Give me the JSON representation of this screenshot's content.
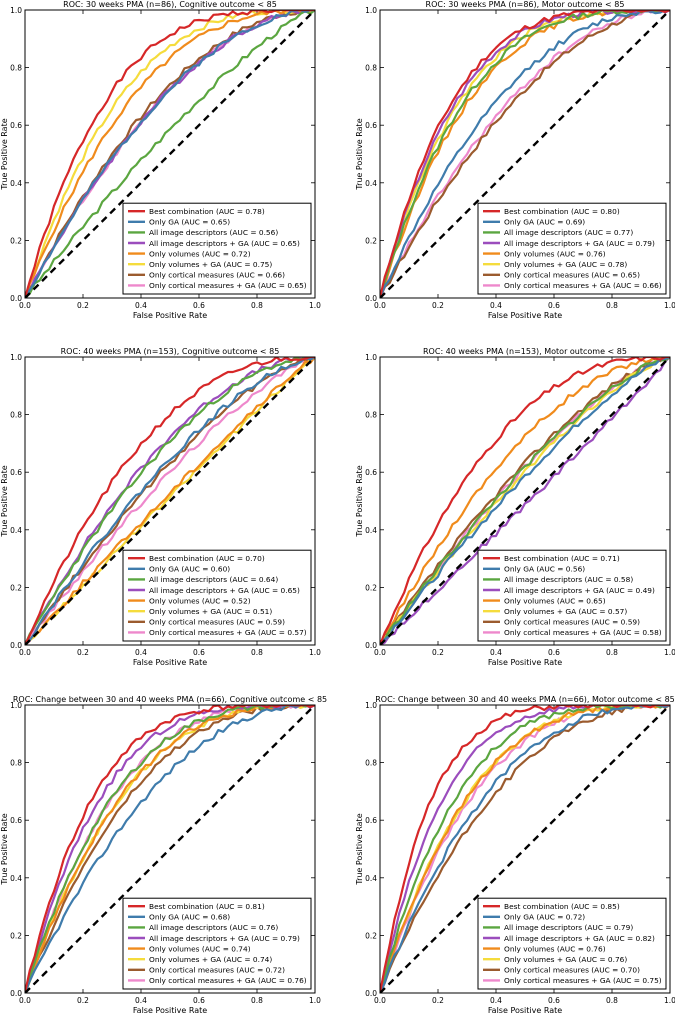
{
  "chart_data": [
    {
      "type": "line",
      "title": "ROC: 30 weeks PMA (n=86), Cognitive outcome < 85",
      "xlabel": "False Positive Rate",
      "ylabel": "True Positive Rate",
      "xlim": [
        0,
        1
      ],
      "ylim": [
        0,
        1
      ],
      "xticks": [
        "0.0",
        "0.2",
        "0.4",
        "0.6",
        "0.8",
        "1.0"
      ],
      "yticks": [
        "0.0",
        "0.2",
        "0.4",
        "0.6",
        "0.8",
        "1.0"
      ],
      "legend": "lower-right",
      "series": [
        {
          "name": "Best combination (AUC = 0.78)",
          "auc": 0.78,
          "color": "#d62728"
        },
        {
          "name": "Only GA (AUC = 0.65)",
          "auc": 0.65,
          "color": "#3f7cac"
        },
        {
          "name": "All image descriptors (AUC = 0.56)",
          "auc": 0.56,
          "color": "#5ba640"
        },
        {
          "name": "All image descriptors + GA (AUC = 0.65)",
          "auc": 0.65,
          "color": "#9b4dbd"
        },
        {
          "name": "Only volumes (AUC = 0.72)",
          "auc": 0.72,
          "color": "#f08b1c"
        },
        {
          "name": "Only volumes + GA (AUC = 0.75)",
          "auc": 0.75,
          "color": "#f5dc3c"
        },
        {
          "name": "Only cortical measures (AUC = 0.66)",
          "auc": 0.66,
          "color": "#9b5b2e"
        },
        {
          "name": "Only cortical measures + GA (AUC = 0.65)",
          "auc": 0.65,
          "color": "#ee88cc"
        }
      ]
    },
    {
      "type": "line",
      "title": "ROC: 30 weeks PMA (n=86), Motor outcome < 85",
      "xlabel": "False Positive Rate",
      "ylabel": "True Positive Rate",
      "xlim": [
        0,
        1
      ],
      "ylim": [
        0,
        1
      ],
      "xticks": [
        "0.0",
        "0.2",
        "0.4",
        "0.6",
        "0.8",
        "1.0"
      ],
      "yticks": [
        "0.0",
        "0.2",
        "0.4",
        "0.6",
        "0.8",
        "1.0"
      ],
      "legend": "lower-right",
      "series": [
        {
          "name": "Best combination (AUC = 0.80)",
          "auc": 0.8,
          "color": "#d62728"
        },
        {
          "name": "Only GA (AUC = 0.69)",
          "auc": 0.69,
          "color": "#3f7cac"
        },
        {
          "name": "All image descriptors (AUC = 0.77)",
          "auc": 0.77,
          "color": "#5ba640"
        },
        {
          "name": "All image descriptors + GA (AUC = 0.79)",
          "auc": 0.79,
          "color": "#9b4dbd"
        },
        {
          "name": "Only volumes (AUC = 0.76)",
          "auc": 0.76,
          "color": "#f08b1c"
        },
        {
          "name": "Only volumes + GA (AUC = 0.78)",
          "auc": 0.78,
          "color": "#f5dc3c"
        },
        {
          "name": "Only cortical measures (AUC = 0.65)",
          "auc": 0.65,
          "color": "#9b5b2e"
        },
        {
          "name": "Only cortical measures + GA (AUC = 0.66)",
          "auc": 0.66,
          "color": "#ee88cc"
        }
      ]
    },
    {
      "type": "line",
      "title": "ROC: 40 weeks PMA (n=153), Cognitive outcome < 85",
      "xlabel": "False Positive Rate",
      "ylabel": "True Positive Rate",
      "xlim": [
        0,
        1
      ],
      "ylim": [
        0,
        1
      ],
      "xticks": [
        "0.0",
        "0.2",
        "0.4",
        "0.6",
        "0.8",
        "1.0"
      ],
      "yticks": [
        "0.0",
        "0.2",
        "0.4",
        "0.6",
        "0.8",
        "1.0"
      ],
      "legend": "lower-right",
      "series": [
        {
          "name": "Best combination (AUC = 0.70)",
          "auc": 0.7,
          "color": "#d62728"
        },
        {
          "name": "Only GA (AUC = 0.60)",
          "auc": 0.6,
          "color": "#3f7cac"
        },
        {
          "name": "All image descriptors (AUC = 0.64)",
          "auc": 0.64,
          "color": "#5ba640"
        },
        {
          "name": "All image descriptors + GA (AUC = 0.65)",
          "auc": 0.65,
          "color": "#9b4dbd"
        },
        {
          "name": "Only volumes (AUC = 0.52)",
          "auc": 0.52,
          "color": "#f08b1c"
        },
        {
          "name": "Only volumes + GA (AUC = 0.51)",
          "auc": 0.51,
          "color": "#f5dc3c"
        },
        {
          "name": "Only cortical measures (AUC = 0.59)",
          "auc": 0.59,
          "color": "#9b5b2e"
        },
        {
          "name": "Only cortical measures + GA (AUC = 0.57)",
          "auc": 0.57,
          "color": "#ee88cc"
        }
      ]
    },
    {
      "type": "line",
      "title": "ROC: 40 weeks PMA (n=153), Motor outcome < 85",
      "xlabel": "False Positive Rate",
      "ylabel": "True Positive Rate",
      "xlim": [
        0,
        1
      ],
      "ylim": [
        0,
        1
      ],
      "xticks": [
        "0.0",
        "0.2",
        "0.4",
        "0.6",
        "0.8",
        "1.0"
      ],
      "yticks": [
        "0.0",
        "0.2",
        "0.4",
        "0.6",
        "0.8",
        "1.0"
      ],
      "legend": "lower-right",
      "series": [
        {
          "name": "Best combination (AUC = 0.71)",
          "auc": 0.71,
          "color": "#d62728"
        },
        {
          "name": "Only GA (AUC = 0.56)",
          "auc": 0.56,
          "color": "#3f7cac"
        },
        {
          "name": "All image descriptors (AUC = 0.58)",
          "auc": 0.58,
          "color": "#5ba640"
        },
        {
          "name": "All image descriptors + GA (AUC = 0.49)",
          "auc": 0.49,
          "color": "#9b4dbd"
        },
        {
          "name": "Only volumes (AUC = 0.65)",
          "auc": 0.65,
          "color": "#f08b1c"
        },
        {
          "name": "Only volumes + GA (AUC = 0.57)",
          "auc": 0.57,
          "color": "#f5dc3c"
        },
        {
          "name": "Only cortical measures (AUC = 0.59)",
          "auc": 0.59,
          "color": "#9b5b2e"
        },
        {
          "name": "Only cortical measures + GA (AUC = 0.58)",
          "auc": 0.58,
          "color": "#ee88cc"
        }
      ]
    },
    {
      "type": "line",
      "title": "ROC: Change between 30 and 40 weeks PMA (n=66), Cognitive outcome < 85",
      "xlabel": "False Positive Rate",
      "ylabel": "True Positive Rate",
      "xlim": [
        0,
        1
      ],
      "ylim": [
        0,
        1
      ],
      "xticks": [
        "0.0",
        "0.2",
        "0.4",
        "0.6",
        "0.8",
        "1.0"
      ],
      "yticks": [
        "0.0",
        "0.2",
        "0.4",
        "0.6",
        "0.8",
        "1.0"
      ],
      "legend": "lower-right",
      "series": [
        {
          "name": "Best combination (AUC = 0.81)",
          "auc": 0.81,
          "color": "#d62728"
        },
        {
          "name": "Only GA (AUC = 0.68)",
          "auc": 0.68,
          "color": "#3f7cac"
        },
        {
          "name": "All image descriptors (AUC = 0.76)",
          "auc": 0.76,
          "color": "#5ba640"
        },
        {
          "name": "All image descriptors + GA (AUC = 0.79)",
          "auc": 0.79,
          "color": "#9b4dbd"
        },
        {
          "name": "Only volumes (AUC = 0.74)",
          "auc": 0.74,
          "color": "#f08b1c"
        },
        {
          "name": "Only volumes + GA (AUC = 0.74)",
          "auc": 0.74,
          "color": "#f5dc3c"
        },
        {
          "name": "Only cortical measures (AUC = 0.72)",
          "auc": 0.72,
          "color": "#9b5b2e"
        },
        {
          "name": "Only cortical measures + GA (AUC = 0.76)",
          "auc": 0.76,
          "color": "#ee88cc"
        }
      ]
    },
    {
      "type": "line",
      "title": "ROC: Change between 30 and 40 weeks PMA (n=66), Motor outcome < 85",
      "xlabel": "False Positive Rate",
      "ylabel": "True Positive Rate",
      "xlim": [
        0,
        1
      ],
      "ylim": [
        0,
        1
      ],
      "xticks": [
        "0.0",
        "0.2",
        "0.4",
        "0.6",
        "0.8",
        "1.0"
      ],
      "yticks": [
        "0.0",
        "0.2",
        "0.4",
        "0.6",
        "0.8",
        "1.0"
      ],
      "legend": "lower-right",
      "series": [
        {
          "name": "Best combination (AUC = 0.85)",
          "auc": 0.85,
          "color": "#d62728"
        },
        {
          "name": "Only GA (AUC = 0.72)",
          "auc": 0.72,
          "color": "#3f7cac"
        },
        {
          "name": "All image descriptors (AUC = 0.79)",
          "auc": 0.79,
          "color": "#5ba640"
        },
        {
          "name": "All image descriptors + GA (AUC = 0.82)",
          "auc": 0.82,
          "color": "#9b4dbd"
        },
        {
          "name": "Only volumes (AUC = 0.76)",
          "auc": 0.76,
          "color": "#f08b1c"
        },
        {
          "name": "Only volumes + GA (AUC = 0.76)",
          "auc": 0.76,
          "color": "#f5dc3c"
        },
        {
          "name": "Only cortical measures (AUC = 0.70)",
          "auc": 0.7,
          "color": "#9b5b2e"
        },
        {
          "name": "Only cortical measures + GA (AUC = 0.75)",
          "auc": 0.75,
          "color": "#ee88cc"
        }
      ]
    }
  ]
}
